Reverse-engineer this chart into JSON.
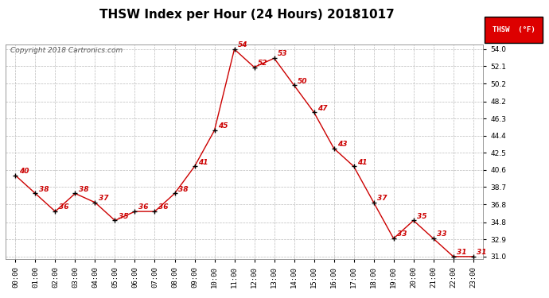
{
  "title": "THSW Index per Hour (24 Hours) 20181017",
  "copyright": "Copyright 2018 Cartronics.com",
  "legend_label": "THSW  (°F)",
  "hours": [
    0,
    1,
    2,
    3,
    4,
    5,
    6,
    7,
    8,
    9,
    10,
    11,
    12,
    13,
    14,
    15,
    16,
    17,
    18,
    19,
    20,
    21,
    22,
    23
  ],
  "values": [
    40,
    38,
    36,
    38,
    37,
    35,
    36,
    36,
    38,
    41,
    45,
    54,
    52,
    53,
    50,
    47,
    43,
    41,
    37,
    33,
    35,
    33,
    31,
    31
  ],
  "ylim_min": 31.0,
  "ylim_max": 54.0,
  "yticks": [
    31.0,
    32.9,
    34.8,
    36.8,
    38.7,
    40.6,
    42.5,
    44.4,
    46.3,
    48.2,
    50.2,
    52.1,
    54.0
  ],
  "line_color": "#cc0000",
  "marker_color": "#000000",
  "background_color": "#ffffff",
  "grid_color": "#bbbbbb",
  "title_fontsize": 11,
  "label_fontsize": 6.5,
  "annotation_fontsize": 6.5,
  "copyright_fontsize": 6.5
}
